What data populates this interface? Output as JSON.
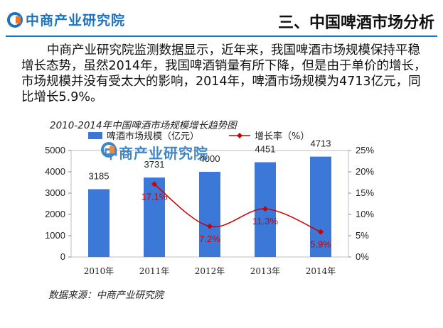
{
  "header": {
    "logo_text": "中商产业研究院",
    "section_title": "三、中国啤酒市场分析"
  },
  "body": {
    "paragraph": "中商产业研究院监测数据显示，近年来，我国啤酒市场规模保持平稳增长态势，虽然2014年，我国啤酒销量有所下降，但是由于单价的增长，市场规模并没有受太大的影响，2014年，啤酒市场规模为4713亿元，同比增长5.9%。"
  },
  "chart_title": "2010-2014年中国啤酒市场规模增长趋势图",
  "source": "数据来源：中商产业研究院",
  "colors": {
    "bar": "#3c78d8",
    "line": "#cc0000",
    "brand": "#1e73be"
  },
  "chart_data": {
    "type": "bar",
    "categories": [
      "2010年",
      "2011年",
      "2012年",
      "2013年",
      "2014年"
    ],
    "series": [
      {
        "name": "啤酒市场规模（亿元）",
        "type": "bar",
        "axis": "left",
        "values": [
          3185,
          3731,
          4000,
          4451,
          4713
        ],
        "labels": [
          "3185",
          "3731",
          "4000",
          "4451",
          "4713"
        ]
      },
      {
        "name": "增长率（%）",
        "type": "line",
        "axis": "right",
        "values": [
          null,
          17.1,
          7.2,
          11.3,
          5.9
        ],
        "labels": [
          "",
          "17.1%",
          "7.2%",
          "11.3%",
          "5.9%"
        ]
      }
    ],
    "ylim_left": [
      0,
      5000
    ],
    "yticks_left": [
      "0",
      "1000",
      "2000",
      "3000",
      "4000",
      "5000"
    ],
    "ylim_right": [
      0,
      25
    ],
    "yticks_right": [
      "0%",
      "5%",
      "10%",
      "15%",
      "20%",
      "25%"
    ],
    "legend_position": "top"
  }
}
